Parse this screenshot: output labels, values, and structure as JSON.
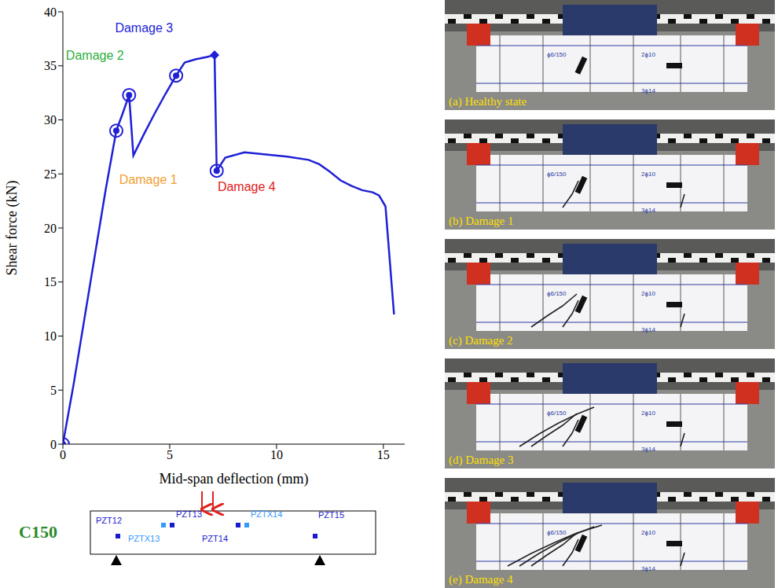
{
  "chart_data": {
    "type": "line",
    "x_label": "Mid-span deflection (mm)",
    "y_label": "Shear force (kN)",
    "color": "#1f1fd6",
    "x": [
      0,
      0.5,
      1,
      1.5,
      2,
      2.5,
      2.8,
      3.1,
      3.3,
      3.8,
      4.3,
      4.8,
      5.3,
      5.7,
      6.2,
      6.7,
      7.1,
      7.2,
      7.6,
      8.5,
      9.5,
      10.5,
      11.5,
      12,
      12.5,
      13,
      13.5,
      14,
      14.5,
      14.8,
      15.1,
      15.5
    ],
    "values": [
      0,
      5.5,
      11.5,
      17.5,
      23.5,
      29,
      30.6,
      32.3,
      26.7,
      28.7,
      30.6,
      32.4,
      34.1,
      35.3,
      35.6,
      35.8,
      36,
      25.3,
      26.5,
      27,
      26.8,
      26.6,
      26.3,
      25.9,
      25.2,
      24.4,
      23.9,
      23.5,
      23.3,
      23,
      22,
      12
    ],
    "xlim": [
      0,
      16
    ],
    "xticks": [
      0,
      5,
      10,
      15
    ],
    "ylim": [
      0,
      40
    ],
    "yticks": [
      0,
      5,
      10,
      15,
      20,
      25,
      30,
      35,
      40
    ],
    "grid": false,
    "marked_points": {
      "x": [
        0,
        2.5,
        3.1,
        5.3,
        7.1,
        7.2
      ],
      "y": [
        0,
        29,
        32.3,
        34.1,
        36,
        25.3
      ],
      "markers": [
        "circle",
        "circle",
        "circle",
        "circle",
        "diamond",
        "circle"
      ]
    },
    "annotations": [
      {
        "text": "Damage 1",
        "x": 4,
        "y": 24.5,
        "color": "#f0a030"
      },
      {
        "text": "Damage 2",
        "x": 1.5,
        "y": 36,
        "color": "#2db040"
      },
      {
        "text": "Damage 3",
        "x": 3.8,
        "y": 38.5,
        "color": "#1f1fd6"
      },
      {
        "text": "Damage 4",
        "x": 8.6,
        "y": 23.8,
        "color": "#e02020"
      }
    ]
  },
  "diagram": {
    "beam": "C150",
    "sensors": [
      "PZT12",
      "PZTX13",
      "PZT13",
      "PZT14",
      "PZTX14",
      "PZT15"
    ]
  },
  "photos": {
    "captions": [
      "(a) Healthy state",
      "(b) Damage 1",
      "(c) Damage 2",
      "(d) Damage 3",
      "(e) Damage 4"
    ],
    "beam_marks": [
      "ϕ6/150",
      "2ϕ10",
      "3ϕ14"
    ]
  }
}
